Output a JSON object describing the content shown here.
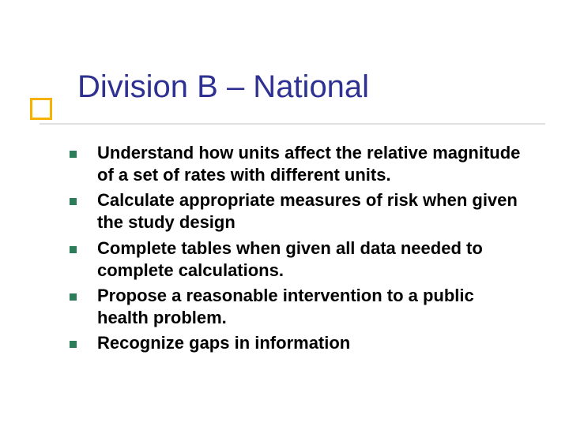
{
  "slide": {
    "title": "Division B – National",
    "title_color": "#2e3192",
    "title_fontsize": 40,
    "title_square_border_color": "#f7b200",
    "title_square_fill": "#ffffff",
    "underline_color": "#e0e0e0",
    "bullets": [
      "Understand how units affect the relative magnitude of a set of rates with different units.",
      "Calculate appropriate measures of risk when given the study design",
      "Complete tables when given all data needed to complete calculations.",
      "Propose a reasonable intervention to a public health problem.",
      "Recognize gaps in  information"
    ],
    "bullet_color": "#2e7d5a",
    "bullet_text_color": "#000000",
    "bullet_fontsize": 22,
    "background_color": "#ffffff"
  }
}
